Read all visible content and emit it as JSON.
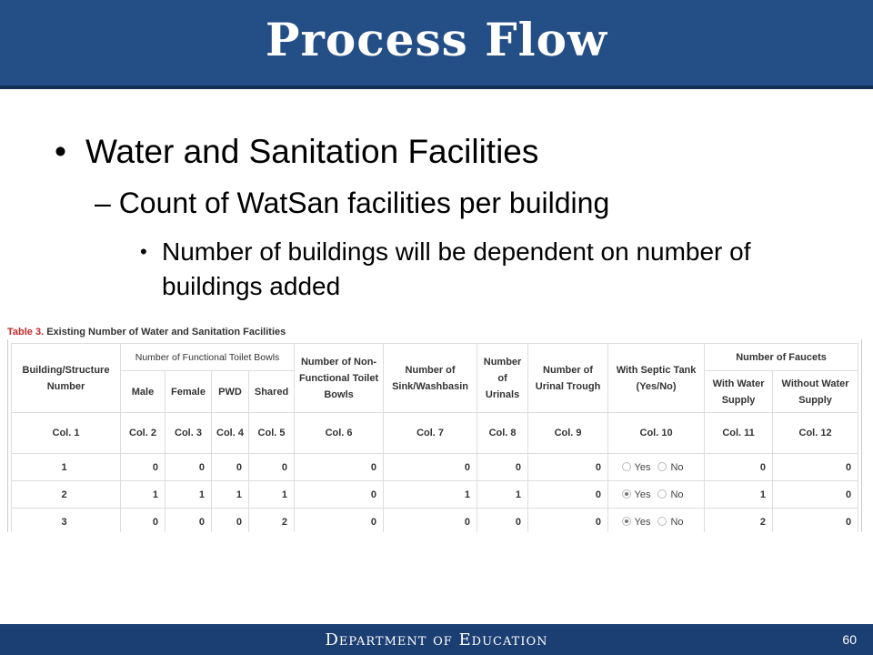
{
  "header": {
    "title": "Process Flow"
  },
  "bullets": {
    "level1": "Water and Sanitation Facilities",
    "level2": "– Count of WatSan facilities per building",
    "level3": "Number of buildings will be dependent on number of buildings added"
  },
  "table": {
    "caption_label": "Table 3.",
    "caption_text": " Existing Number of Water and Sanitation Facilities",
    "headers": {
      "building": "Building/Structure Number",
      "toilet_group": "Number of Functional Toilet Bowls",
      "male": "Male",
      "female": "Female",
      "pwd": "PWD",
      "shared": "Shared",
      "nonfunc": "Number of Non-Functional Toilet Bowls",
      "sink": "Number of Sink/Washbasin",
      "urinals": "Number of Urinals",
      "trough": "Number of Urinal Trough",
      "septic": "With Septic Tank (Yes/No)",
      "faucet_group": "Number of Faucets",
      "with_water": "With Water Supply",
      "without_water": "Without Water Supply"
    },
    "col_labels": [
      "Col. 1",
      "Col. 2",
      "Col. 3",
      "Col. 4",
      "Col. 5",
      "Col. 6",
      "Col. 7",
      "Col. 8",
      "Col. 9",
      "Col. 10",
      "Col. 11",
      "Col. 12"
    ],
    "yes_label": "Yes",
    "no_label": "No",
    "rows": [
      {
        "num": "1",
        "male": "0",
        "female": "0",
        "pwd": "0",
        "shared": "0",
        "nonfunc": "0",
        "sink": "0",
        "urinals": "0",
        "trough": "0",
        "septic": "none",
        "with_water": "0",
        "without_water": "0"
      },
      {
        "num": "2",
        "male": "1",
        "female": "1",
        "pwd": "1",
        "shared": "1",
        "nonfunc": "0",
        "sink": "1",
        "urinals": "1",
        "trough": "0",
        "septic": "yes",
        "with_water": "1",
        "without_water": "0"
      },
      {
        "num": "3",
        "male": "0",
        "female": "0",
        "pwd": "0",
        "shared": "2",
        "nonfunc": "0",
        "sink": "0",
        "urinals": "0",
        "trough": "0",
        "septic": "yes",
        "with_water": "2",
        "without_water": "0"
      }
    ]
  },
  "footer": {
    "department": "Department of Education",
    "page_number": "60"
  },
  "colors": {
    "header_bg": "#234e86",
    "footer_bg": "#1c3f73",
    "caption_label": "#c62828"
  }
}
